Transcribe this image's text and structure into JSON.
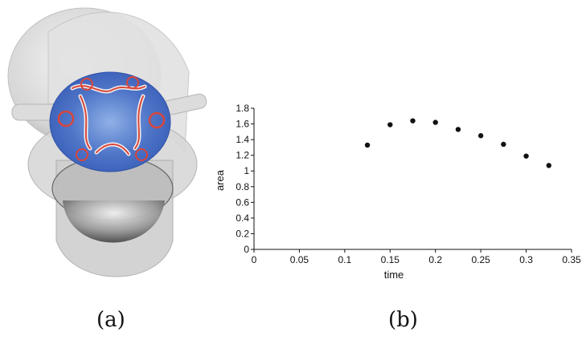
{
  "panels": {
    "a": {
      "caption": "(a)",
      "visual": "3D flow visualization rendering"
    },
    "b": {
      "caption": "(b)"
    }
  },
  "chart_data": {
    "type": "scatter",
    "title": "",
    "xlabel": "time",
    "ylabel": "area",
    "xlim": [
      0,
      0.35
    ],
    "ylim": [
      0,
      1.8
    ],
    "xticks": [
      "0",
      "0.05",
      "0.1",
      "0.15",
      "0.2",
      "0.25",
      "0.3",
      "0.35"
    ],
    "yticks": [
      "0",
      "0.2",
      "0.4",
      "0.6",
      "0.8",
      "1",
      "1.2",
      "1.4",
      "1.6",
      "1.8"
    ],
    "grid": false,
    "legend": "none",
    "series": [
      {
        "x": [
          0.125,
          0.15,
          0.175,
          0.2,
          0.225,
          0.25,
          0.275,
          0.3,
          0.325
        ],
        "y": [
          1.33,
          1.59,
          1.64,
          1.62,
          1.53,
          1.45,
          1.34,
          1.19,
          1.07
        ]
      }
    ],
    "marker_color": "#111111"
  }
}
